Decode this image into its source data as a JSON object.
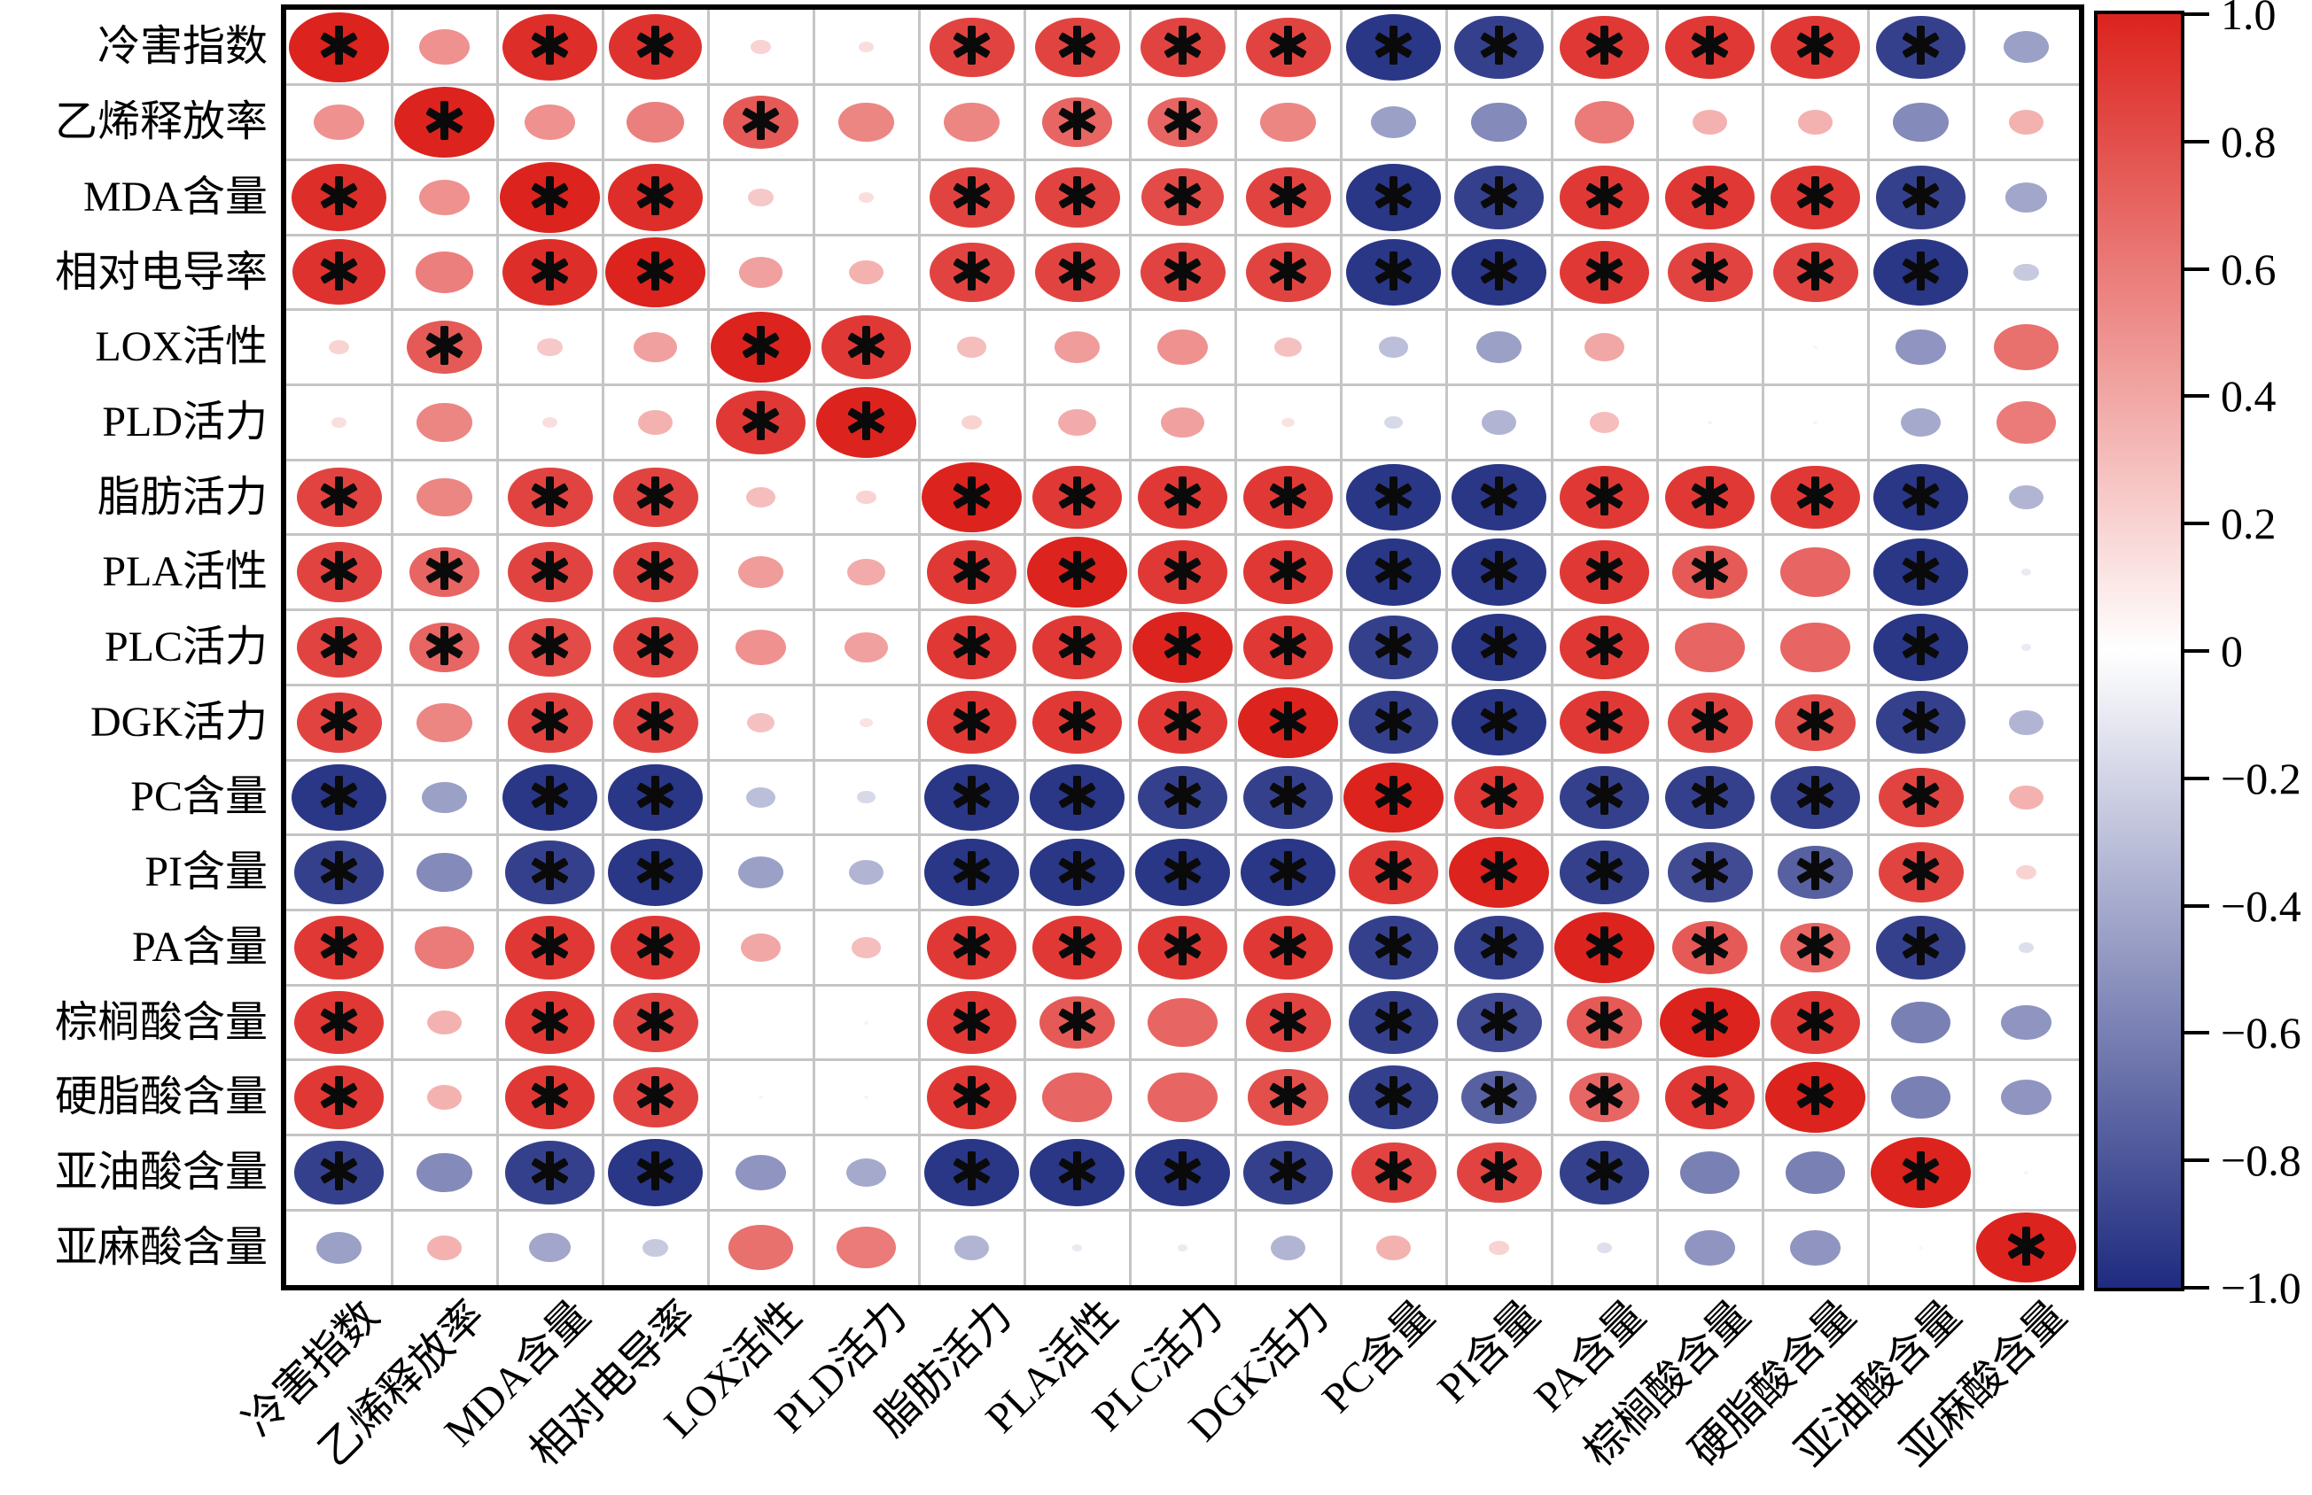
{
  "chart_data": {
    "type": "heatmap",
    "subtype": "correlation-bubble-matrix",
    "variables": [
      "冷害指数",
      "乙烯释放率",
      "MDA含量",
      "相对电导率",
      "LOX活性",
      "PLD活力",
      "脂肪活力",
      "PLA活性",
      "PLC活力",
      "DGK活力",
      "PC含量",
      "PI含量",
      "PA含量",
      "棕榈酸含量",
      "硬脂酸含量",
      "亚油酸含量",
      "亚麻酸含量"
    ],
    "matrix": [
      [
        1.0,
        0.5,
        0.95,
        0.93,
        0.2,
        0.15,
        0.85,
        0.85,
        0.85,
        0.85,
        -0.95,
        -0.9,
        0.9,
        0.9,
        0.9,
        -0.9,
        -0.45
      ],
      [
        0.5,
        1.0,
        0.5,
        0.58,
        0.75,
        0.55,
        0.55,
        0.7,
        0.7,
        0.55,
        -0.45,
        -0.55,
        0.6,
        0.35,
        0.35,
        -0.55,
        0.35
      ],
      [
        0.95,
        0.5,
        1.0,
        0.95,
        0.25,
        0.15,
        0.85,
        0.85,
        0.82,
        0.85,
        -0.95,
        -0.9,
        0.9,
        0.9,
        0.9,
        -0.9,
        -0.42
      ],
      [
        0.93,
        0.58,
        0.95,
        1.0,
        0.43,
        0.35,
        0.85,
        0.85,
        0.85,
        0.85,
        -0.95,
        -0.95,
        0.9,
        0.85,
        0.85,
        -0.95,
        -0.25
      ],
      [
        0.2,
        0.75,
        0.25,
        0.43,
        1.0,
        0.9,
        0.3,
        0.45,
        0.5,
        0.28,
        -0.3,
        -0.45,
        0.4,
        0.02,
        0.05,
        -0.5,
        0.65
      ],
      [
        0.15,
        0.55,
        0.15,
        0.35,
        0.9,
        1.0,
        0.2,
        0.38,
        0.43,
        0.13,
        -0.18,
        -0.35,
        0.3,
        -0.05,
        -0.05,
        -0.4,
        0.6
      ],
      [
        0.85,
        0.55,
        0.85,
        0.85,
        0.3,
        0.2,
        1.0,
        0.9,
        0.9,
        0.9,
        -0.95,
        -0.95,
        0.9,
        0.9,
        0.9,
        -0.95,
        -0.35
      ],
      [
        0.85,
        0.7,
        0.85,
        0.85,
        0.45,
        0.38,
        0.9,
        1.0,
        0.9,
        0.9,
        -0.95,
        -0.95,
        0.9,
        0.75,
        0.7,
        -0.95,
        -0.1
      ],
      [
        0.85,
        0.7,
        0.82,
        0.85,
        0.5,
        0.43,
        0.9,
        0.9,
        1.0,
        0.9,
        -0.9,
        -0.95,
        0.9,
        0.7,
        0.7,
        -0.95,
        -0.1
      ],
      [
        0.85,
        0.55,
        0.85,
        0.85,
        0.28,
        0.13,
        0.9,
        0.9,
        0.9,
        1.0,
        -0.9,
        -0.95,
        0.9,
        0.85,
        0.8,
        -0.9,
        -0.35
      ],
      [
        -0.95,
        -0.45,
        -0.95,
        -0.95,
        -0.3,
        -0.18,
        -0.95,
        -0.95,
        -0.9,
        -0.9,
        1.0,
        0.9,
        -0.9,
        -0.9,
        -0.9,
        0.85,
        0.35
      ],
      [
        -0.9,
        -0.55,
        -0.9,
        -0.95,
        -0.45,
        -0.35,
        -0.95,
        -0.95,
        -0.95,
        -0.95,
        0.9,
        1.0,
        -0.9,
        -0.85,
        -0.75,
        0.85,
        0.2
      ],
      [
        0.9,
        0.6,
        0.9,
        0.9,
        0.4,
        0.3,
        0.9,
        0.9,
        0.9,
        0.9,
        -0.9,
        -0.9,
        1.0,
        0.75,
        0.7,
        -0.9,
        -0.15
      ],
      [
        0.9,
        0.35,
        0.9,
        0.85,
        0.02,
        -0.05,
        0.9,
        0.75,
        0.7,
        0.85,
        -0.9,
        -0.85,
        0.75,
        1.0,
        0.9,
        -0.6,
        -0.5
      ],
      [
        0.9,
        0.35,
        0.9,
        0.85,
        0.05,
        -0.05,
        0.9,
        0.7,
        0.7,
        0.8,
        -0.9,
        -0.75,
        0.7,
        0.9,
        1.0,
        -0.6,
        -0.5
      ],
      [
        -0.9,
        -0.55,
        -0.9,
        -0.95,
        -0.5,
        -0.4,
        -0.95,
        -0.95,
        -0.95,
        -0.9,
        0.85,
        0.85,
        -0.9,
        -0.6,
        -0.6,
        1.0,
        0.05
      ],
      [
        -0.45,
        0.35,
        -0.42,
        -0.25,
        0.65,
        0.6,
        -0.35,
        -0.1,
        -0.1,
        -0.35,
        0.35,
        0.2,
        -0.15,
        -0.5,
        -0.5,
        0.05,
        1.0
      ]
    ],
    "significant": [
      [
        1,
        0,
        1,
        1,
        0,
        0,
        1,
        1,
        1,
        1,
        1,
        1,
        1,
        1,
        1,
        1,
        0
      ],
      [
        0,
        1,
        0,
        0,
        1,
        0,
        0,
        1,
        1,
        0,
        0,
        0,
        0,
        0,
        0,
        0,
        0
      ],
      [
        1,
        0,
        1,
        1,
        0,
        0,
        1,
        1,
        1,
        1,
        1,
        1,
        1,
        1,
        1,
        1,
        0
      ],
      [
        1,
        0,
        1,
        1,
        0,
        0,
        1,
        1,
        1,
        1,
        1,
        1,
        1,
        1,
        1,
        1,
        0
      ],
      [
        0,
        1,
        0,
        0,
        1,
        1,
        0,
        0,
        0,
        0,
        0,
        0,
        0,
        0,
        0,
        0,
        0
      ],
      [
        0,
        0,
        0,
        0,
        1,
        1,
        0,
        0,
        0,
        0,
        0,
        0,
        0,
        0,
        0,
        0,
        0
      ],
      [
        1,
        0,
        1,
        1,
        0,
        0,
        1,
        1,
        1,
        1,
        1,
        1,
        1,
        1,
        1,
        1,
        0
      ],
      [
        1,
        1,
        1,
        1,
        0,
        0,
        1,
        1,
        1,
        1,
        1,
        1,
        1,
        1,
        0,
        1,
        0
      ],
      [
        1,
        1,
        1,
        1,
        0,
        0,
        1,
        1,
        1,
        1,
        1,
        1,
        1,
        0,
        0,
        1,
        0
      ],
      [
        1,
        0,
        1,
        1,
        0,
        0,
        1,
        1,
        1,
        1,
        1,
        1,
        1,
        1,
        1,
        1,
        0
      ],
      [
        1,
        0,
        1,
        1,
        0,
        0,
        1,
        1,
        1,
        1,
        1,
        1,
        1,
        1,
        1,
        1,
        0
      ],
      [
        1,
        0,
        1,
        1,
        0,
        0,
        1,
        1,
        1,
        1,
        1,
        1,
        1,
        1,
        1,
        1,
        0
      ],
      [
        1,
        0,
        1,
        1,
        0,
        0,
        1,
        1,
        1,
        1,
        1,
        1,
        1,
        1,
        1,
        1,
        0
      ],
      [
        1,
        0,
        1,
        1,
        0,
        0,
        1,
        1,
        0,
        1,
        1,
        1,
        1,
        1,
        1,
        0,
        0
      ],
      [
        1,
        0,
        1,
        1,
        0,
        0,
        1,
        0,
        0,
        1,
        1,
        1,
        1,
        1,
        1,
        0,
        0
      ],
      [
        1,
        0,
        1,
        1,
        0,
        0,
        1,
        1,
        1,
        1,
        1,
        1,
        1,
        0,
        0,
        1,
        0
      ],
      [
        0,
        0,
        0,
        0,
        0,
        0,
        0,
        0,
        0,
        0,
        0,
        0,
        0,
        0,
        0,
        0,
        1
      ]
    ],
    "significance_marker": "*",
    "grid": true,
    "legend_position": "right",
    "colorbar": {
      "max": 1,
      "min": -1,
      "ticks": [
        {
          "label": "1.0",
          "value": 1.0
        },
        {
          "label": "0.8",
          "value": 0.8
        },
        {
          "label": "0.6",
          "value": 0.6
        },
        {
          "label": "0.4",
          "value": 0.4
        },
        {
          "label": "0.2",
          "value": 0.2
        },
        {
          "label": "0",
          "value": 0.0
        },
        {
          "label": "−0.2",
          "value": -0.2
        },
        {
          "label": "−0.4",
          "value": -0.4
        },
        {
          "label": "−0.6",
          "value": -0.6
        },
        {
          "label": "−0.8",
          "value": -0.8
        },
        {
          "label": "−1.0",
          "value": -1.0
        }
      ]
    },
    "colors": {
      "positive_max": "#dc231e",
      "zero": "#ffffff",
      "negative_max": "#1f2b80",
      "grid": "#c5c5c5",
      "border": "#000000",
      "marker": "#0a0a0a"
    }
  }
}
